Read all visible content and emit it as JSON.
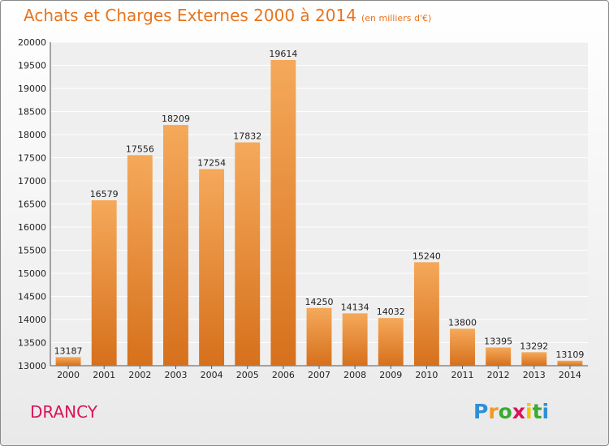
{
  "header": {
    "title": "Achats et Charges Externes 2000 à 2014",
    "subtitle": "(en milliers d'€)"
  },
  "footer": {
    "city": "DRANCY",
    "logo": {
      "letters": [
        "P",
        "r",
        "o",
        "x",
        "i",
        "t",
        "i"
      ],
      "colors": [
        "#2e8fd6",
        "#f29a1f",
        "#3aaa35",
        "#d9145a",
        "#f2c500",
        "#3aaa35",
        "#2e8fd6"
      ]
    }
  },
  "colors": {
    "bar_top": "#f5a95a",
    "bar_bottom": "#d6701c",
    "title": "#e8741e",
    "city": "#d9145a"
  },
  "chart_data": {
    "type": "bar",
    "title": "Achats et Charges Externes 2000 à 2014",
    "subtitle": "(en milliers d'€)",
    "categories": [
      "2000",
      "2001",
      "2002",
      "2003",
      "2004",
      "2005",
      "2006",
      "2007",
      "2008",
      "2009",
      "2010",
      "2011",
      "2012",
      "2013",
      "2014"
    ],
    "values": [
      13187,
      16579,
      17556,
      18209,
      17254,
      17832,
      19614,
      14250,
      14134,
      14032,
      15240,
      13800,
      13395,
      13292,
      13109
    ],
    "ylim": [
      13000,
      20000
    ],
    "yticks": [
      13000,
      13500,
      14000,
      14500,
      15000,
      15500,
      16000,
      16500,
      17000,
      17500,
      18000,
      18500,
      19000,
      19500,
      20000
    ],
    "xlabel": "",
    "ylabel": "",
    "grid": true
  }
}
